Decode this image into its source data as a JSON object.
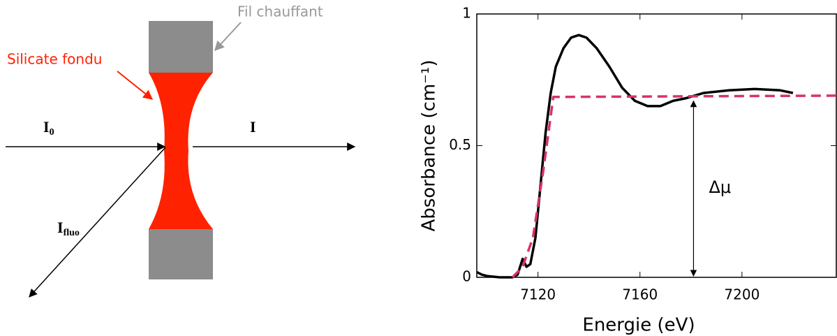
{
  "diagram": {
    "heater_label": "Fil chauffant",
    "melt_label": "Silicate fondu",
    "beam_in": {
      "main": "I",
      "sub": "0"
    },
    "beam_out": "I",
    "beam_fluo": {
      "main": "I",
      "sub": "fluo"
    }
  },
  "chart_data": {
    "type": "line",
    "x_label": "Energie (eV)",
    "y_label": "Absorbance (cm⁻¹)",
    "xlim": [
      7096,
      7237
    ],
    "ylim": [
      0,
      1
    ],
    "xticks": [
      7120,
      7160,
      7200
    ],
    "yticks": [
      0,
      0.5,
      1
    ],
    "annotation": {
      "text": "Δμ",
      "x": 7181,
      "y_from": 0,
      "y_to": 0.68
    },
    "series": [
      {
        "color": "#000000",
        "dash": false,
        "x": [
          7096,
          7098,
          7100,
          7105,
          7110,
          7112,
          7114,
          7115.5,
          7117,
          7119,
          7121,
          7123,
          7125,
          7127,
          7130,
          7133,
          7136,
          7139,
          7143,
          7148,
          7153,
          7158,
          7163,
          7168,
          7173,
          7178,
          7185,
          7195,
          7205,
          7215,
          7220
        ],
        "values": [
          0.02,
          0.01,
          0.005,
          0.0,
          0.0,
          0.01,
          0.07,
          0.04,
          0.05,
          0.15,
          0.35,
          0.55,
          0.7,
          0.8,
          0.87,
          0.91,
          0.92,
          0.91,
          0.87,
          0.8,
          0.72,
          0.67,
          0.65,
          0.65,
          0.67,
          0.68,
          0.7,
          0.71,
          0.715,
          0.71,
          0.7
        ]
      },
      {
        "color": "#d6336c",
        "dash": true,
        "x": [
          7110,
          7114,
          7118,
          7122,
          7126,
          7237
        ],
        "values": [
          0,
          0.04,
          0.15,
          0.4,
          0.685,
          0.69
        ]
      }
    ]
  }
}
